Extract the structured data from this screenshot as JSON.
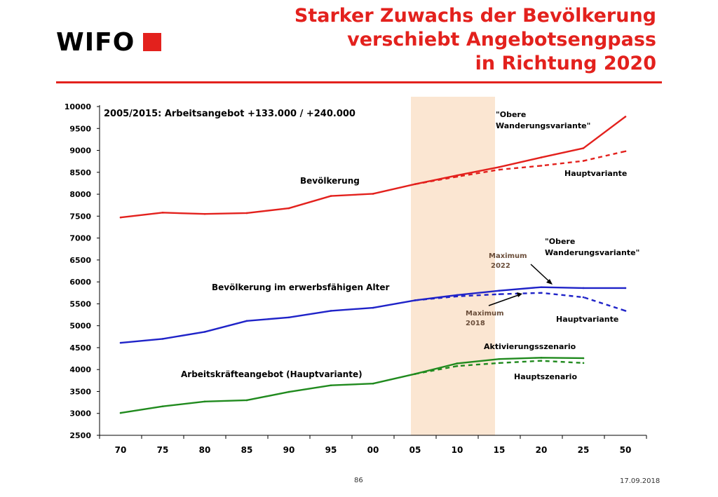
{
  "logo": {
    "text": "WIFO"
  },
  "title": {
    "line1": "Starker Zuwachs der Bevölkerung",
    "line2": "verschiebt Angebotsengpass",
    "line3": "in Richtung 2020"
  },
  "footer": {
    "page": "86",
    "date": "17.09.2018"
  },
  "colors": {
    "red": "#e3211d",
    "blue": "#1f23c8",
    "green": "#208a1e",
    "band": "#fbe6d2",
    "accent": "#e3211d"
  },
  "chart_data": {
    "type": "line",
    "x_ticks": [
      "70",
      "75",
      "80",
      "85",
      "90",
      "95",
      "00",
      "05",
      "10",
      "15",
      "20",
      "25",
      "50"
    ],
    "y_ticks": [
      "10000",
      "9500",
      "9000",
      "8500",
      "8000",
      "7500",
      "7000",
      "6500",
      "6000",
      "5500",
      "5000",
      "4500",
      "4000",
      "3500",
      "3000",
      "2500"
    ],
    "ylim": [
      2500,
      10000
    ],
    "grid": false,
    "shaded_period": [
      "05",
      "15"
    ],
    "series": [
      {
        "name": "Bevölkerung",
        "color": "red",
        "style": "solid",
        "x": [
          "70",
          "75",
          "80",
          "85",
          "90",
          "95",
          "00",
          "05",
          "10",
          "15",
          "20",
          "25",
          "50"
        ],
        "values": [
          7470,
          7580,
          7550,
          7570,
          7680,
          7960,
          8010,
          8230,
          8430,
          8620,
          8840,
          9050,
          9770
        ]
      },
      {
        "name": "Hauptvariante",
        "color": "red",
        "style": "dashed",
        "x": [
          "05",
          "10",
          "15",
          "20",
          "25",
          "50"
        ],
        "values": [
          8230,
          8400,
          8560,
          8650,
          8760,
          8980
        ]
      },
      {
        "name": "Bevölkerung im erwerbsfähigen Alter",
        "color": "blue",
        "style": "solid",
        "x": [
          "70",
          "75",
          "80",
          "85",
          "90",
          "95",
          "00",
          "05",
          "10",
          "15",
          "20",
          "25",
          "50"
        ],
        "values": [
          4610,
          4700,
          4860,
          5110,
          5190,
          5340,
          5410,
          5580,
          5700,
          5800,
          5880,
          5860,
          5860
        ]
      },
      {
        "name": "Hauptvariante",
        "color": "blue",
        "style": "dashed",
        "x": [
          "05",
          "10",
          "15",
          "20",
          "25",
          "50"
        ],
        "values": [
          5580,
          5670,
          5720,
          5750,
          5650,
          5340
        ]
      },
      {
        "name": "Arbeitskräfteangebot (Hauptvariante)",
        "color": "green",
        "style": "solid",
        "x": [
          "70",
          "75",
          "80",
          "85",
          "90",
          "95",
          "00",
          "05",
          "10",
          "15",
          "20",
          "25"
        ],
        "values": [
          3010,
          3160,
          3270,
          3300,
          3490,
          3640,
          3680,
          3900,
          4140,
          4240,
          4270,
          4260
        ]
      },
      {
        "name": "Hauptszenario",
        "color": "green",
        "style": "dashed",
        "x": [
          "05",
          "10",
          "15",
          "20",
          "25"
        ],
        "values": [
          3900,
          4080,
          4150,
          4200,
          4150
        ]
      }
    ],
    "annotations": {
      "top_note": "2005/2015: Arbeitsangebot +133.000 / +240.000",
      "pop_label": "Bevölkerung",
      "obere1": "\"Obere",
      "obere2": "Wanderungsvariante\"",
      "haupt_red": "Hauptvariante",
      "working_age_label": "Bevölkerung im erwerbsfähigen Alter",
      "obere_blue1": "\"Obere",
      "obere_blue2": "Wanderungsvariante\"",
      "max2022_1": "Maximum",
      "max2022_2": "2022",
      "max2018_1": "Maximum",
      "max2018_2": "2018",
      "haupt_blue": "Hauptvariante",
      "labor_label": "Arbeitskräfteangebot (Hauptvariante)",
      "aktiv": "Aktivierungsszenario",
      "hauptsz": "Hauptszenario"
    }
  }
}
